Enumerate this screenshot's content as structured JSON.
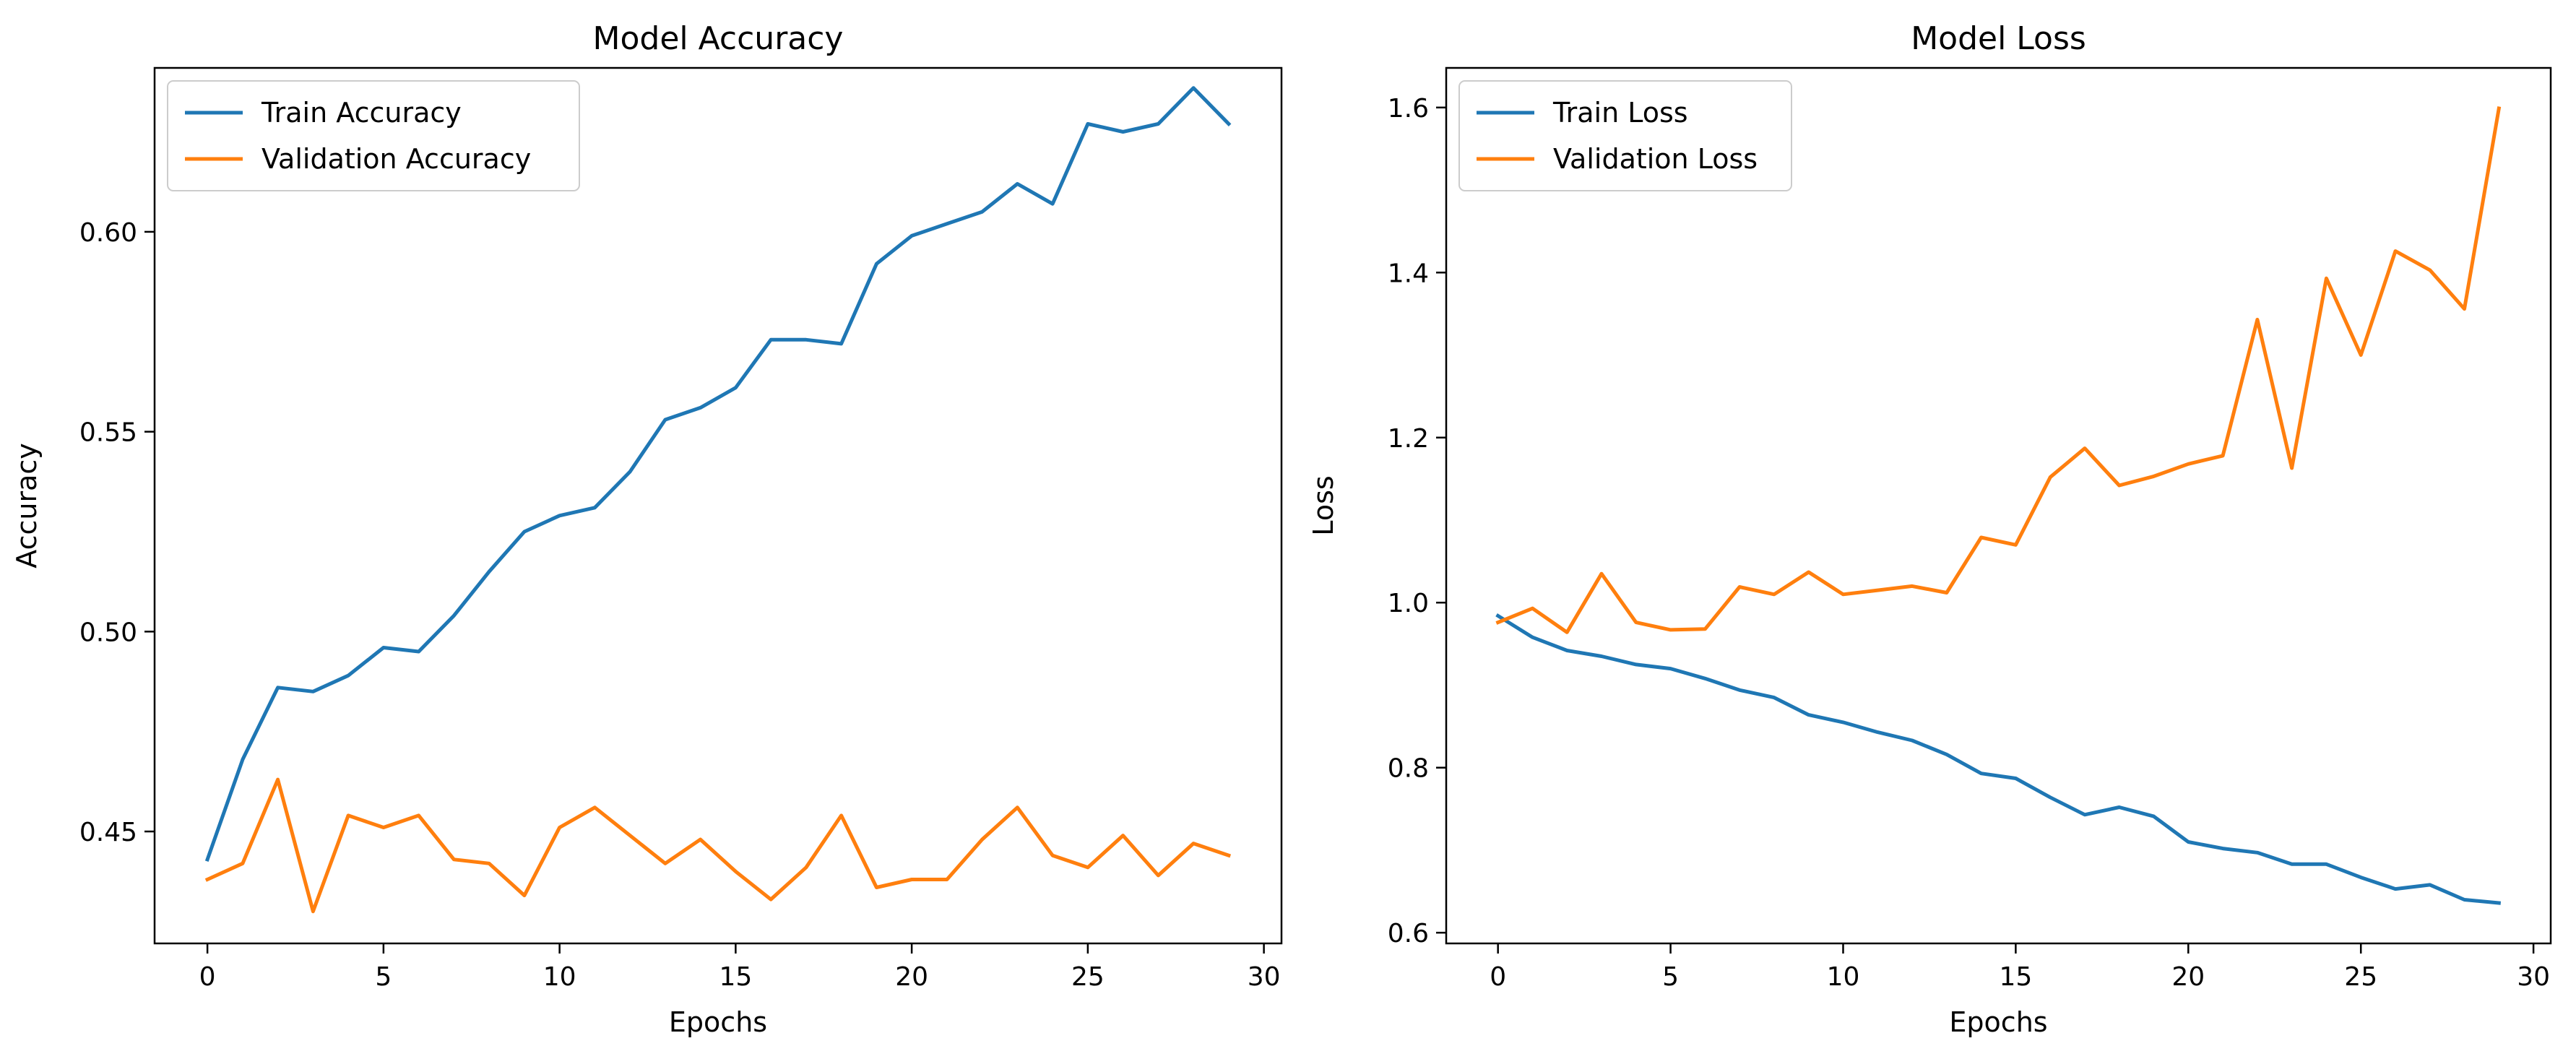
{
  "chart_data": [
    {
      "type": "line",
      "title": "Model Accuracy",
      "xlabel": "Epochs",
      "ylabel": "Accuracy",
      "xlim": [
        -1.5,
        30.5
      ],
      "ylim": [
        0.422,
        0.641
      ],
      "xticks": [
        0,
        5,
        10,
        15,
        20,
        25,
        30
      ],
      "yticks": [
        0.45,
        0.5,
        0.55,
        0.6
      ],
      "ytick_labels": [
        "0.45",
        "0.50",
        "0.55",
        "0.60"
      ],
      "grid": false,
      "legend_position": "top-left",
      "x": [
        0,
        1,
        2,
        3,
        4,
        5,
        6,
        7,
        8,
        9,
        10,
        11,
        12,
        13,
        14,
        15,
        16,
        17,
        18,
        19,
        20,
        21,
        22,
        23,
        24,
        25,
        26,
        27,
        28,
        29
      ],
      "series": [
        {
          "name": "Train Accuracy",
          "color": "#1f77b4",
          "values": [
            0.443,
            0.468,
            0.486,
            0.485,
            0.489,
            0.496,
            0.495,
            0.504,
            0.515,
            0.525,
            0.529,
            0.531,
            0.54,
            0.553,
            0.556,
            0.561,
            0.573,
            0.573,
            0.572,
            0.592,
            0.599,
            0.602,
            0.605,
            0.612,
            0.607,
            0.627,
            0.625,
            0.627,
            0.636,
            0.627
          ]
        },
        {
          "name": "Validation Accuracy",
          "color": "#ff7f0e",
          "values": [
            0.438,
            0.442,
            0.463,
            0.43,
            0.454,
            0.451,
            0.454,
            0.443,
            0.442,
            0.434,
            0.451,
            0.456,
            0.449,
            0.442,
            0.448,
            0.44,
            0.433,
            0.441,
            0.454,
            0.436,
            0.438,
            0.438,
            0.448,
            0.456,
            0.444,
            0.441,
            0.449,
            0.439,
            0.447,
            0.444
          ]
        }
      ]
    },
    {
      "type": "line",
      "title": "Model Loss",
      "xlabel": "Epochs",
      "ylabel": "Loss",
      "xlim": [
        -1.5,
        30.5
      ],
      "ylim": [
        0.587,
        1.648
      ],
      "xticks": [
        0,
        5,
        10,
        15,
        20,
        25,
        30
      ],
      "yticks": [
        0.6,
        0.8,
        1.0,
        1.2,
        1.4,
        1.6
      ],
      "ytick_labels": [
        "0.6",
        "0.8",
        "1.0",
        "1.2",
        "1.4",
        "1.6"
      ],
      "grid": false,
      "legend_position": "top-left",
      "x": [
        0,
        1,
        2,
        3,
        4,
        5,
        6,
        7,
        8,
        9,
        10,
        11,
        12,
        13,
        14,
        15,
        16,
        17,
        18,
        19,
        20,
        21,
        22,
        23,
        24,
        25,
        26,
        27,
        28,
        29
      ],
      "series": [
        {
          "name": "Train Loss",
          "color": "#1f77b4",
          "values": [
            0.984,
            0.958,
            0.942,
            0.935,
            0.925,
            0.92,
            0.908,
            0.894,
            0.885,
            0.864,
            0.855,
            0.843,
            0.833,
            0.816,
            0.793,
            0.787,
            0.764,
            0.743,
            0.752,
            0.741,
            0.71,
            0.702,
            0.697,
            0.683,
            0.683,
            0.667,
            0.653,
            0.658,
            0.64,
            0.636
          ]
        },
        {
          "name": "Validation Loss",
          "color": "#ff7f0e",
          "values": [
            0.976,
            0.993,
            0.964,
            1.035,
            0.976,
            0.967,
            0.968,
            1.019,
            1.01,
            1.037,
            1.01,
            1.015,
            1.02,
            1.012,
            1.079,
            1.07,
            1.152,
            1.187,
            1.142,
            1.153,
            1.168,
            1.178,
            1.343,
            1.163,
            1.393,
            1.3,
            1.426,
            1.403,
            1.356,
            1.599
          ]
        }
      ]
    }
  ]
}
